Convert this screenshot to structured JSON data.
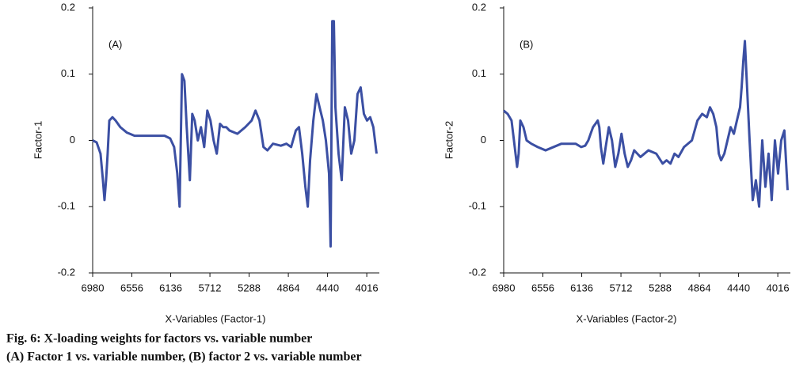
{
  "chart_data": [
    {
      "type": "line",
      "panel_label": "(A)",
      "ylabel": "Factor-1",
      "xlabel": "X-Variables (Factor-1)",
      "color": "#3b4fa3",
      "xlim": [
        6980,
        3880
      ],
      "xticks": [
        6980,
        6556,
        6136,
        5712,
        5288,
        4864,
        4440,
        4016
      ],
      "ylim": [
        -0.2,
        0.2
      ],
      "yticks": [
        -0.2,
        -0.1,
        0,
        0.1,
        0.2
      ],
      "x": [
        6980,
        6937,
        6895,
        6869,
        6852,
        6835,
        6818,
        6800,
        6766,
        6732,
        6681,
        6612,
        6527,
        6356,
        6202,
        6142,
        6099,
        6065,
        6040,
        6014,
        5988,
        5963,
        5946,
        5929,
        5903,
        5877,
        5843,
        5809,
        5774,
        5740,
        5706,
        5672,
        5638,
        5603,
        5569,
        5535,
        5501,
        5415,
        5330,
        5261,
        5219,
        5176,
        5133,
        5090,
        5030,
        4945,
        4885,
        4834,
        4783,
        4749,
        4714,
        4680,
        4654,
        4629,
        4594,
        4560,
        4526,
        4491,
        4458,
        4424,
        4407,
        4389,
        4372,
        4355,
        4321,
        4287,
        4253,
        4218,
        4184,
        4150,
        4116,
        4082,
        4047,
        4013,
        3979,
        3945,
        3910
      ],
      "values": [
        0,
        -0.003,
        -0.02,
        -0.06,
        -0.09,
        -0.06,
        -0.02,
        0.03,
        0.035,
        0.03,
        0.02,
        0.012,
        0.007,
        0.007,
        0.007,
        0.003,
        -0.01,
        -0.05,
        -0.1,
        0.1,
        0.09,
        0.02,
        -0.02,
        -0.06,
        0.04,
        0.03,
        0,
        0.02,
        -0.01,
        0.045,
        0.03,
        0,
        -0.02,
        0.025,
        0.02,
        0.02,
        0.015,
        0.01,
        0.02,
        0.03,
        0.045,
        0.03,
        -0.01,
        -0.015,
        -0.005,
        -0.008,
        -0.005,
        -0.01,
        0.015,
        0.02,
        -0.02,
        -0.07,
        -0.1,
        -0.03,
        0.03,
        0.07,
        0.05,
        0.03,
        0,
        -0.05,
        -0.16,
        0.18,
        0.18,
        0.05,
        -0.02,
        -0.06,
        0.05,
        0.03,
        -0.02,
        0,
        0.07,
        0.08,
        0.04,
        0.03,
        0.035,
        0.02,
        -0.02
      ]
    },
    {
      "type": "line",
      "panel_label": "(B)",
      "ylabel": "Factor-2",
      "xlabel": "X-Variables (Factor-2)",
      "color": "#3b4fa3",
      "xlim": [
        6980,
        3880
      ],
      "xticks": [
        6980,
        6556,
        6136,
        5712,
        5288,
        4864,
        4440,
        4016
      ],
      "ylim": [
        -0.2,
        0.2
      ],
      "yticks": [
        -0.2,
        -0.1,
        0,
        0.1,
        0.2
      ],
      "x": [
        6980,
        6937,
        6895,
        6869,
        6852,
        6835,
        6818,
        6800,
        6766,
        6732,
        6681,
        6612,
        6527,
        6356,
        6202,
        6142,
        6099,
        6065,
        6040,
        6014,
        5988,
        5963,
        5946,
        5929,
        5903,
        5877,
        5843,
        5809,
        5774,
        5740,
        5706,
        5672,
        5638,
        5603,
        5569,
        5535,
        5501,
        5415,
        5330,
        5261,
        5219,
        5176,
        5133,
        5090,
        5030,
        4945,
        4885,
        4834,
        4783,
        4749,
        4714,
        4680,
        4654,
        4629,
        4594,
        4560,
        4526,
        4491,
        4458,
        4424,
        4407,
        4389,
        4372,
        4355,
        4321,
        4287,
        4253,
        4218,
        4184,
        4150,
        4116,
        4082,
        4047,
        4013,
        3979,
        3945,
        3910
      ],
      "values": [
        0.045,
        0.04,
        0.03,
        0,
        -0.02,
        -0.04,
        -0.02,
        0.03,
        0.02,
        0,
        -0.005,
        -0.01,
        -0.015,
        -0.005,
        -0.005,
        -0.01,
        -0.008,
        0,
        0.01,
        0.02,
        0.025,
        0.03,
        0.02,
        -0.01,
        -0.035,
        -0.01,
        0.02,
        0,
        -0.04,
        -0.02,
        0.01,
        -0.02,
        -0.04,
        -0.03,
        -0.015,
        -0.02,
        -0.025,
        -0.015,
        -0.02,
        -0.035,
        -0.03,
        -0.035,
        -0.02,
        -0.025,
        -0.01,
        0,
        0.03,
        0.04,
        0.035,
        0.05,
        0.04,
        0.02,
        -0.02,
        -0.03,
        -0.02,
        0,
        0.02,
        0.01,
        0.03,
        0.05,
        0.08,
        0.12,
        0.15,
        0.1,
        0,
        -0.09,
        -0.06,
        -0.1,
        0,
        -0.07,
        -0.02,
        -0.09,
        0,
        -0.05,
        0,
        0.015,
        -0.075
      ]
    }
  ],
  "caption": [
    "Fig. 6: X-loading weights for factors vs. variable number",
    "(A) Factor 1 vs. variable number, (B) factor 2 vs. variable number"
  ]
}
